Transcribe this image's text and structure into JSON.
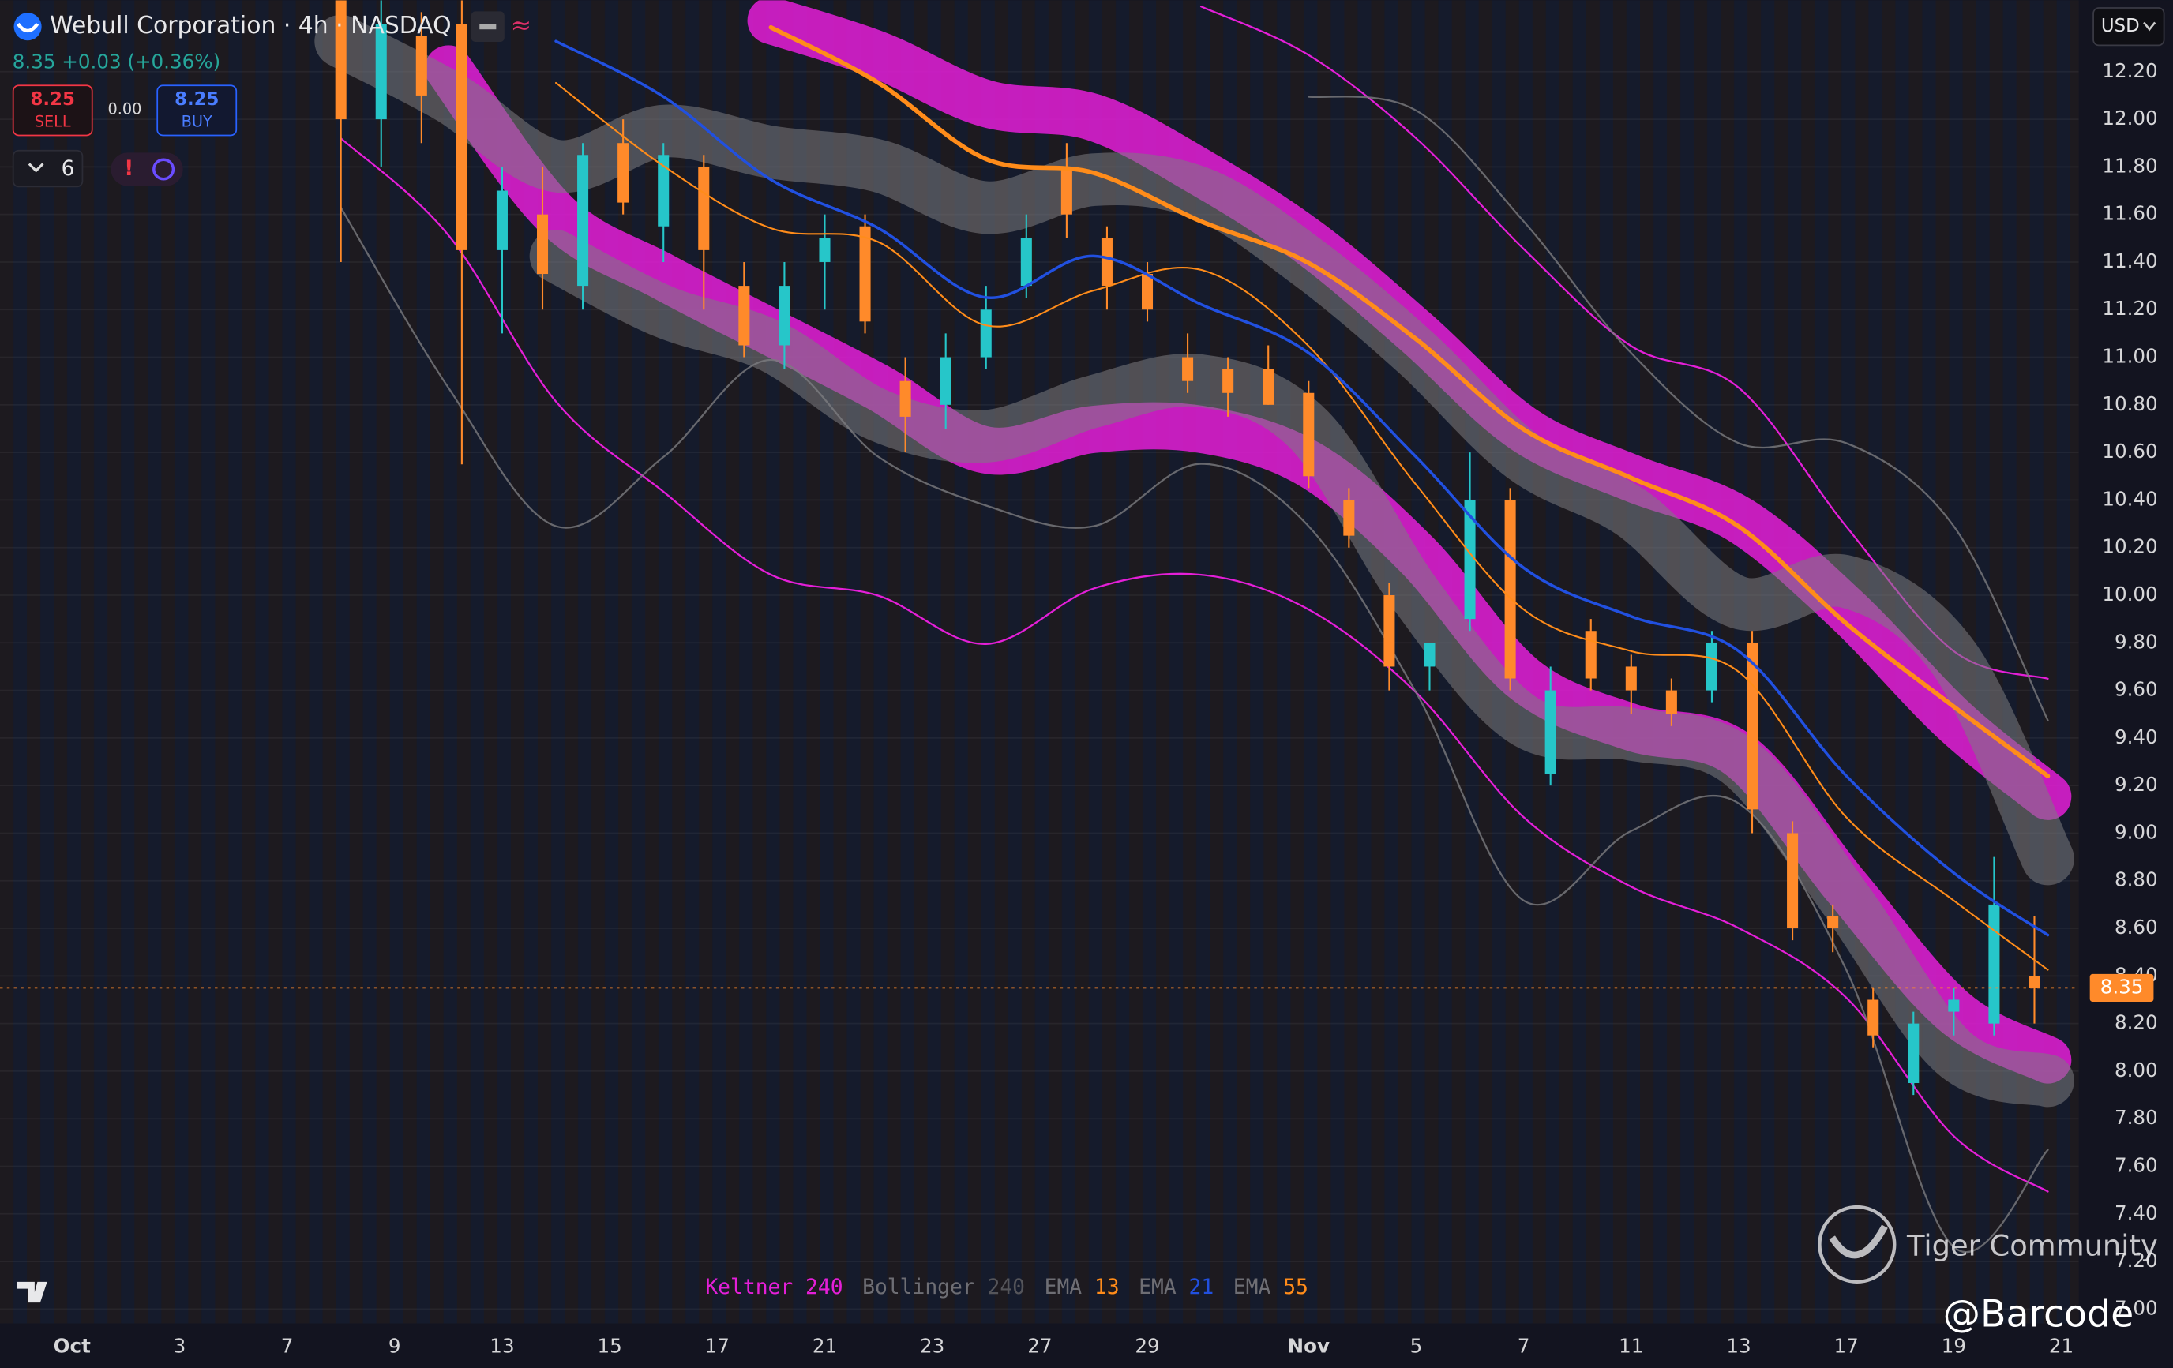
{
  "header": {
    "title": "Webull Corporation · 4h · NASDAQ",
    "change": "+0.03 (+0.36%)"
  },
  "toolbar": {
    "sell_price": "8.25",
    "sell": "SELL",
    "spread": "0.00",
    "buy_price": "8.25",
    "buy": "BUY",
    "interval_count": "6"
  },
  "currency": "USD",
  "watermark": {
    "brand": "Tiger Community",
    "handle": "@Barcode"
  },
  "chart_data": {
    "type": "candlestick",
    "last_price": 8.35,
    "xlim": [
      -5.36,
      149.3
    ],
    "xticks": [
      {
        "value": 0,
        "label": "Oct"
      },
      {
        "value": 8,
        "label": "3"
      },
      {
        "value": 16,
        "label": "7"
      },
      {
        "value": 24,
        "label": "9"
      },
      {
        "value": 32,
        "label": "13"
      },
      {
        "value": 40,
        "label": "15"
      },
      {
        "value": 48,
        "label": "17"
      },
      {
        "value": 56,
        "label": "21"
      },
      {
        "value": 64,
        "label": "23"
      },
      {
        "value": 72,
        "label": "27"
      },
      {
        "value": 80,
        "label": "29"
      },
      {
        "value": 92,
        "label": "Nov"
      },
      {
        "value": 100,
        "label": "5"
      },
      {
        "value": 108,
        "label": "7"
      },
      {
        "value": 116,
        "label": "11"
      },
      {
        "value": 124,
        "label": "13"
      },
      {
        "value": 132,
        "label": "17"
      },
      {
        "value": 140,
        "label": "19"
      },
      {
        "value": 148,
        "label": "21"
      }
    ],
    "ylim": [
      6.94,
      12.5
    ],
    "yticks": [
      {
        "value": 7.0,
        "label": "7.00"
      },
      {
        "value": 7.2,
        "label": "7.20"
      },
      {
        "value": 7.4,
        "label": "7.40"
      },
      {
        "value": 7.6,
        "label": "7.60"
      },
      {
        "value": 7.8,
        "label": "7.80"
      },
      {
        "value": 8.0,
        "label": "8.00"
      },
      {
        "value": 8.2,
        "label": "8.20"
      },
      {
        "value": 8.4,
        "label": "8.40"
      },
      {
        "value": 8.6,
        "label": "8.60"
      },
      {
        "value": 8.8,
        "label": "8.80"
      },
      {
        "value": 9.0,
        "label": "9.00"
      },
      {
        "value": 9.2,
        "label": "9.20"
      },
      {
        "value": 9.4,
        "label": "9.40"
      },
      {
        "value": 9.6,
        "label": "9.60"
      },
      {
        "value": 9.8,
        "label": "9.80"
      },
      {
        "value": 10.0,
        "label": "10.00"
      },
      {
        "value": 10.2,
        "label": "10.20"
      },
      {
        "value": 10.4,
        "label": "10.40"
      },
      {
        "value": 10.6,
        "label": "10.60"
      },
      {
        "value": 10.8,
        "label": "10.80"
      },
      {
        "value": 11.0,
        "label": "11.00"
      },
      {
        "value": 11.2,
        "label": "11.20"
      },
      {
        "value": 11.4,
        "label": "11.40"
      },
      {
        "value": 11.6,
        "label": "11.60"
      },
      {
        "value": 11.8,
        "label": "11.80"
      },
      {
        "value": 12.0,
        "label": "12.00"
      },
      {
        "value": 12.2,
        "label": "12.20"
      }
    ],
    "grid": true,
    "candles": {
      "up_color": "#26c6c9",
      "down_color": "#ff8a2a",
      "x": [
        20,
        23,
        26,
        29,
        32,
        35,
        38,
        41,
        44,
        47,
        50,
        53,
        56,
        59,
        62,
        65,
        68,
        71,
        74,
        77,
        80,
        83,
        86,
        89,
        92,
        95,
        98,
        101,
        104,
        107,
        110,
        113,
        116,
        119,
        122,
        125,
        128,
        131,
        134,
        137,
        140,
        143,
        146
      ],
      "open": [
        12.5,
        12.0,
        12.35,
        12.4,
        11.45,
        11.6,
        11.3,
        11.9,
        11.55,
        11.8,
        11.3,
        11.05,
        11.4,
        11.55,
        10.9,
        10.8,
        11.0,
        11.3,
        11.8,
        11.5,
        11.35,
        11.0,
        10.95,
        10.95,
        10.85,
        10.4,
        10.0,
        9.7,
        9.9,
        10.4,
        9.25,
        9.85,
        9.7,
        9.6,
        9.6,
        9.8,
        9.0,
        8.65,
        8.3,
        7.95,
        8.25,
        8.2,
        8.4
      ],
      "high": [
        12.5,
        12.5,
        12.45,
        12.5,
        11.8,
        11.8,
        11.9,
        12.0,
        11.9,
        11.85,
        11.4,
        11.4,
        11.6,
        11.6,
        11.0,
        11.1,
        11.3,
        11.6,
        11.9,
        11.55,
        11.4,
        11.1,
        11.0,
        11.05,
        10.9,
        10.45,
        10.05,
        9.8,
        10.6,
        10.45,
        9.7,
        9.9,
        9.75,
        9.65,
        9.85,
        9.85,
        9.05,
        8.7,
        8.35,
        8.25,
        8.35,
        8.9,
        8.65
      ],
      "low": [
        11.4,
        11.8,
        11.9,
        10.55,
        11.1,
        11.2,
        11.2,
        11.6,
        11.4,
        11.2,
        11.0,
        10.95,
        11.2,
        11.1,
        10.6,
        10.7,
        10.95,
        11.25,
        11.5,
        11.2,
        11.15,
        10.85,
        10.75,
        10.8,
        10.45,
        10.2,
        9.6,
        9.6,
        9.85,
        9.6,
        9.2,
        9.6,
        9.5,
        9.45,
        9.55,
        9.0,
        8.55,
        8.5,
        8.1,
        7.9,
        8.15,
        8.15,
        8.2
      ],
      "close": [
        12.0,
        12.4,
        12.1,
        11.45,
        11.7,
        11.35,
        11.85,
        11.65,
        11.85,
        11.45,
        11.05,
        11.3,
        11.5,
        11.15,
        10.75,
        11.0,
        11.2,
        11.5,
        11.6,
        11.3,
        11.2,
        10.9,
        10.85,
        10.8,
        10.5,
        10.25,
        9.7,
        9.8,
        10.4,
        9.65,
        9.6,
        9.65,
        9.6,
        9.5,
        9.8,
        9.1,
        8.6,
        8.6,
        8.15,
        8.2,
        8.3,
        8.7,
        8.35
      ]
    },
    "indicator_x": [
      20,
      28,
      36,
      44,
      52,
      60,
      68,
      76,
      84,
      92,
      100,
      108,
      116,
      124,
      132,
      140,
      147
    ],
    "indicators": [
      {
        "name": "Keltner",
        "length": 240,
        "color": "#e41fd8",
        "upper_band": [
          null,
          null,
          null,
          null,
          12.415,
          12.27,
          12.066,
          12.008,
          11.775,
          11.484,
          11.105,
          10.697,
          10.493,
          10.319,
          9.94,
          9.474,
          9.154
        ],
        "lower_band": [
          null,
          12.212,
          11.6,
          11.338,
          11.105,
          10.872,
          10.61,
          10.697,
          10.697,
          10.552,
          10.173,
          9.649,
          9.445,
          9.329,
          8.775,
          8.251,
          8.047
        ],
        "upper": [
          null,
          null,
          null,
          null,
          null,
          null,
          null,
          null,
          12.474,
          12.27,
          11.92,
          11.455,
          11.047,
          10.872,
          10.289,
          9.765,
          9.649
        ],
        "lower": [
          11.92,
          11.513,
          10.814,
          10.435,
          10.086,
          9.998,
          9.795,
          10.028,
          10.086,
          9.94,
          9.591,
          9.067,
          8.775,
          8.601,
          8.309,
          7.727,
          7.494
        ]
      },
      {
        "name": "Bollinger",
        "length": 240,
        "color": "#7c7c80",
        "upper_band": [
          12.328,
          12.095,
          11.804,
          11.95,
          11.862,
          11.804,
          11.629,
          11.746,
          11.688,
          11.396,
          11.018,
          10.581,
          10.348,
          9.969,
          10.057,
          9.736,
          8.892
        ],
        "lower_band": [
          null,
          null,
          11.425,
          11.192,
          11.047,
          10.756,
          10.668,
          10.814,
          10.901,
          10.697,
          9.999,
          9.474,
          9.416,
          9.3,
          8.717,
          8.077,
          7.96
        ],
        "upper": [
          null,
          null,
          null,
          null,
          null,
          null,
          null,
          null,
          null,
          12.095,
          12.037,
          11.571,
          11.018,
          10.639,
          10.639,
          10.29,
          9.474
        ],
        "lower": [
          11.629,
          10.872,
          10.29,
          10.581,
          10.989,
          10.581,
          10.377,
          10.29,
          10.552,
          10.29,
          9.591,
          8.717,
          9.009,
          9.125,
          8.426,
          7.261,
          7.669
        ]
      },
      {
        "name": "EMA",
        "length": 13,
        "color": "#ff8c1a",
        "values": [
          null,
          null,
          12.153,
          11.804,
          11.542,
          11.484,
          11.134,
          11.28,
          11.367,
          11.047,
          10.464,
          9.94,
          9.765,
          9.678,
          9.067,
          8.717,
          8.426
        ]
      },
      {
        "name": "EMA",
        "length": 21,
        "color": "#2150e0",
        "values": [
          null,
          null,
          12.328,
          12.095,
          11.746,
          11.542,
          11.251,
          11.425,
          11.222,
          11.018,
          10.581,
          10.115,
          9.911,
          9.765,
          9.241,
          8.833,
          8.572
        ]
      },
      {
        "name": "EMA",
        "length": 55,
        "color": "#ff8c1a",
        "values": [
          null,
          null,
          null,
          null,
          12.386,
          12.153,
          11.833,
          11.775,
          11.571,
          11.396,
          11.076,
          10.697,
          10.493,
          10.289,
          9.881,
          9.532,
          9.24
        ]
      }
    ]
  }
}
